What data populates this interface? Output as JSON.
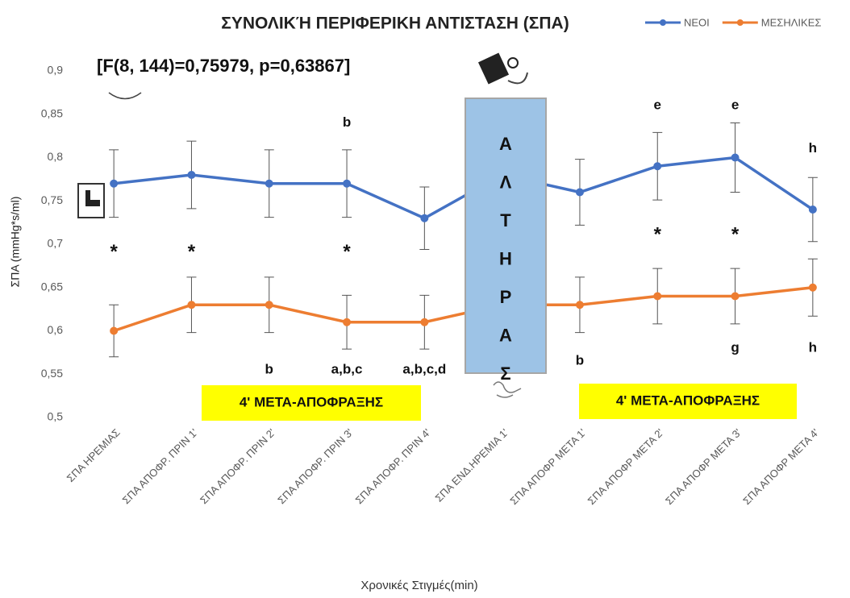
{
  "chart_data": {
    "type": "line",
    "title": "ΣΥΝΟΛΙΚΉ ΠΕΡΙΦΕΡΙΚΗ ΑΝΤΙΣΤΑΣΗ (ΣΠΑ)",
    "subtitle": "[F(8, 144)=0,75979, p=0,63867]",
    "x_label": "Χρονικές Στιγμές(min)",
    "y_label": "ΣΠΑ (mmHg*s/ml)",
    "categories": [
      "ΣΠΑ ΗΡΕΜΙΑΣ",
      "ΣΠΑ ΑΠΟΦΡ. ΠΡΙΝ 1'",
      "ΣΠΑ ΑΠΟΦΡ. ΠΡΙΝ 2'",
      "ΣΠΑ ΑΠΟΦΡ. ΠΡΙΝ 3'",
      "ΣΠΑ ΑΠΟΦΡ. ΠΡΙΝ 4'",
      "ΣΠΑ ΕΝΔ.ΗΡΕΜΙΑ 1'",
      "ΣΠΑ ΑΠΟΦΡ ΜΕΤΑ 1'",
      "ΣΠΑ ΑΠΟΦΡ ΜΕΤΑ 2'",
      "ΣΠΑ ΑΠΟΦΡ ΜΕΤΑ 3'",
      "ΣΠΑ ΑΠΟΦΡ ΜΕΤΑ 4'"
    ],
    "series": [
      {
        "name": "ΝΕΟΙ",
        "color": "#4472c4",
        "values": [
          0.77,
          0.78,
          0.77,
          0.77,
          0.73,
          0.78,
          0.76,
          0.79,
          0.8,
          0.74
        ],
        "errors": [
          0.039,
          0.039,
          0.039,
          0.039,
          0.036,
          0.039,
          0.038,
          0.039,
          0.04,
          0.037
        ]
      },
      {
        "name": "ΜΕΣΗΛΙΚΕΣ",
        "color": "#ed7d31",
        "values": [
          0.6,
          0.63,
          0.63,
          0.61,
          0.61,
          0.63,
          0.63,
          0.64,
          0.64,
          0.65
        ],
        "errors": [
          0.03,
          0.032,
          0.032,
          0.031,
          0.031,
          0.032,
          0.032,
          0.032,
          0.032,
          0.033
        ]
      }
    ],
    "ylim": [
      0.5,
      0.9
    ],
    "yticks": [
      {
        "value": 0.5,
        "label": "0,5"
      },
      {
        "value": 0.55,
        "label": "0,55"
      },
      {
        "value": 0.6,
        "label": "0,6"
      },
      {
        "value": 0.65,
        "label": "0,65"
      },
      {
        "value": 0.7,
        "label": "0,7"
      },
      {
        "value": 0.75,
        "label": "0,75"
      },
      {
        "value": 0.8,
        "label": "0,8"
      },
      {
        "value": 0.85,
        "label": "0,85"
      },
      {
        "value": 0.9,
        "label": "0,9"
      }
    ],
    "grid": false,
    "legend": "top-right",
    "annotations": [
      {
        "text": "*",
        "x": "ΣΠΑ ΗΡΕΜΙΑΣ",
        "y": 0.69
      },
      {
        "text": "*",
        "x": "ΣΠΑ ΑΠΟΦΡ. ΠΡΙΝ 1'",
        "y": 0.69
      },
      {
        "text": "*",
        "x": "ΣΠΑ ΑΠΟΦΡ. ΠΡΙΝ 3'",
        "y": 0.69
      },
      {
        "text": "*",
        "x": "ΣΠΑ ΑΠΟΦΡ ΜΕΤΑ 2'",
        "y": 0.71
      },
      {
        "text": "*",
        "x": "ΣΠΑ ΑΠΟΦΡ ΜΕΤΑ 3'",
        "y": 0.71
      },
      {
        "text": "b",
        "x": "ΣΠΑ ΑΠΟΦΡ. ΠΡΙΝ 3'",
        "y": 0.84
      },
      {
        "text": "e",
        "x": "ΣΠΑ ΑΠΟΦΡ ΜΕΤΑ 2'",
        "y": 0.86
      },
      {
        "text": "e",
        "x": "ΣΠΑ ΑΠΟΦΡ ΜΕΤΑ 3'",
        "y": 0.86
      },
      {
        "text": "h",
        "x": "ΣΠΑ ΑΠΟΦΡ ΜΕΤΑ 4'",
        "y": 0.81
      },
      {
        "text": "b",
        "x": "ΣΠΑ ΑΠΟΦΡ. ΠΡΙΝ 2'",
        "y": 0.555
      },
      {
        "text": "a,b,c",
        "x": "ΣΠΑ ΑΠΟΦΡ. ΠΡΙΝ 3'",
        "y": 0.555
      },
      {
        "text": "a,b,c,d",
        "x": "ΣΠΑ ΑΠΟΦΡ. ΠΡΙΝ 4'",
        "y": 0.555
      },
      {
        "text": "b",
        "x": "ΣΠΑ ΑΠΟΦΡ ΜΕΤΑ 1'",
        "y": 0.565
      },
      {
        "text": "g",
        "x": "ΣΠΑ ΑΠΟΦΡ ΜΕΤΑ 3'",
        "y": 0.58
      },
      {
        "text": "h",
        "x": "ΣΠΑ ΑΠΟΦΡ ΜΕΤΑ 4'",
        "y": 0.58
      }
    ],
    "side_label": [
      "Α",
      "Λ",
      "Τ",
      "Η",
      "Ρ",
      "Α",
      "Σ"
    ],
    "phase_labels": [
      "4' ΜΕΤΑ-ΑΠΟΦΡΑΞΗΣ",
      "4' ΜΕΤΑ-ΑΠΟΦΡΑΞΗΣ"
    ]
  }
}
